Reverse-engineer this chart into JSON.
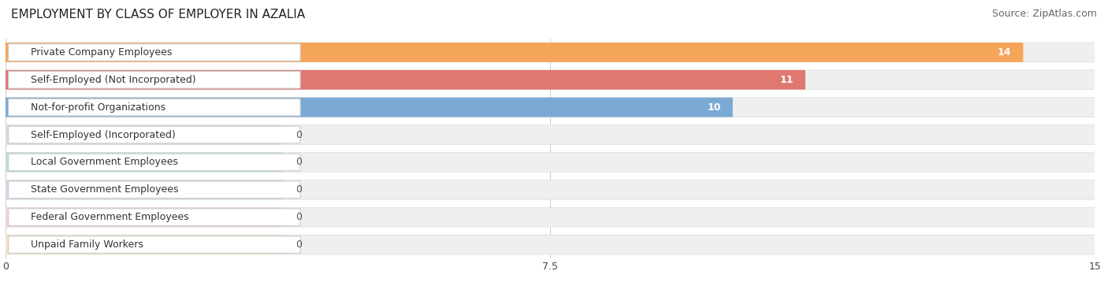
{
  "title": "EMPLOYMENT BY CLASS OF EMPLOYER IN AZALIA",
  "source": "Source: ZipAtlas.com",
  "categories": [
    "Private Company Employees",
    "Self-Employed (Not Incorporated)",
    "Not-for-profit Organizations",
    "Self-Employed (Incorporated)",
    "Local Government Employees",
    "State Government Employees",
    "Federal Government Employees",
    "Unpaid Family Workers"
  ],
  "values": [
    14,
    11,
    10,
    0,
    0,
    0,
    0,
    0
  ],
  "bar_colors": [
    "#f5a55a",
    "#e07870",
    "#7aaad4",
    "#c0a8d8",
    "#60c0b0",
    "#a8a8e0",
    "#f0a0b8",
    "#f8c888"
  ],
  "bar_bg_color": "#efefef",
  "background_color": "#ffffff",
  "xlim": [
    0,
    15
  ],
  "xticks": [
    0,
    7.5,
    15
  ],
  "title_fontsize": 11,
  "source_fontsize": 9,
  "label_fontsize": 9,
  "value_fontsize": 9
}
